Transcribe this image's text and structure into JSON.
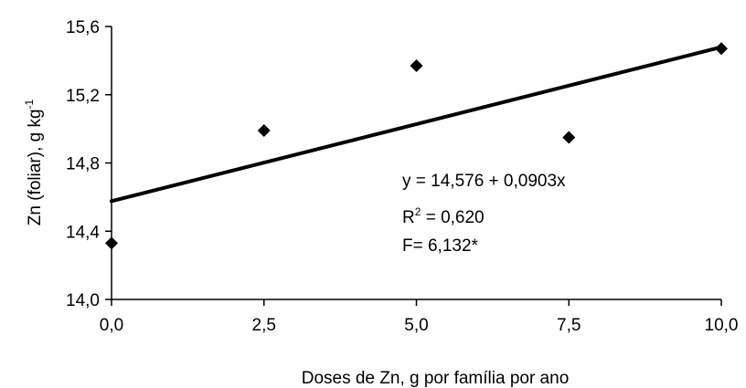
{
  "chart_data": {
    "type": "scatter",
    "title": "",
    "xlabel": "Doses de Zn, g por família por ano",
    "ylabel": "Zn (foliar), g kg",
    "ylabel_superscript": "-1",
    "xlim": [
      0,
      10
    ],
    "ylim": [
      14.0,
      15.6
    ],
    "x_ticks": [
      0.0,
      2.5,
      5.0,
      7.5,
      10.0
    ],
    "x_tick_labels": [
      "0,0",
      "2,5",
      "5,0",
      "7,5",
      "10,0"
    ],
    "y_ticks": [
      14.0,
      14.4,
      14.8,
      15.2,
      15.6
    ],
    "y_tick_labels": [
      "14,0",
      "14,4",
      "14,8",
      "15,2",
      "15,6"
    ],
    "grid": false,
    "legend": "none",
    "series": [
      {
        "marker": "diamond",
        "color": "#000000",
        "points": [
          {
            "x": 0.0,
            "y": 14.33
          },
          {
            "x": 2.5,
            "y": 14.99
          },
          {
            "x": 5.0,
            "y": 15.37
          },
          {
            "x": 7.5,
            "y": 14.95
          },
          {
            "x": 10.0,
            "y": 15.47
          }
        ]
      }
    ],
    "trendline": {
      "type": "linear",
      "intercept": 14.576,
      "slope": 0.0903,
      "color": "#000000"
    },
    "annotations": [
      {
        "text": "y = 14,576 + 0,0903x"
      },
      {
        "text": "R",
        "sup": "2",
        "rest": " = 0,620"
      },
      {
        "text": "F= 6,132*"
      }
    ]
  }
}
